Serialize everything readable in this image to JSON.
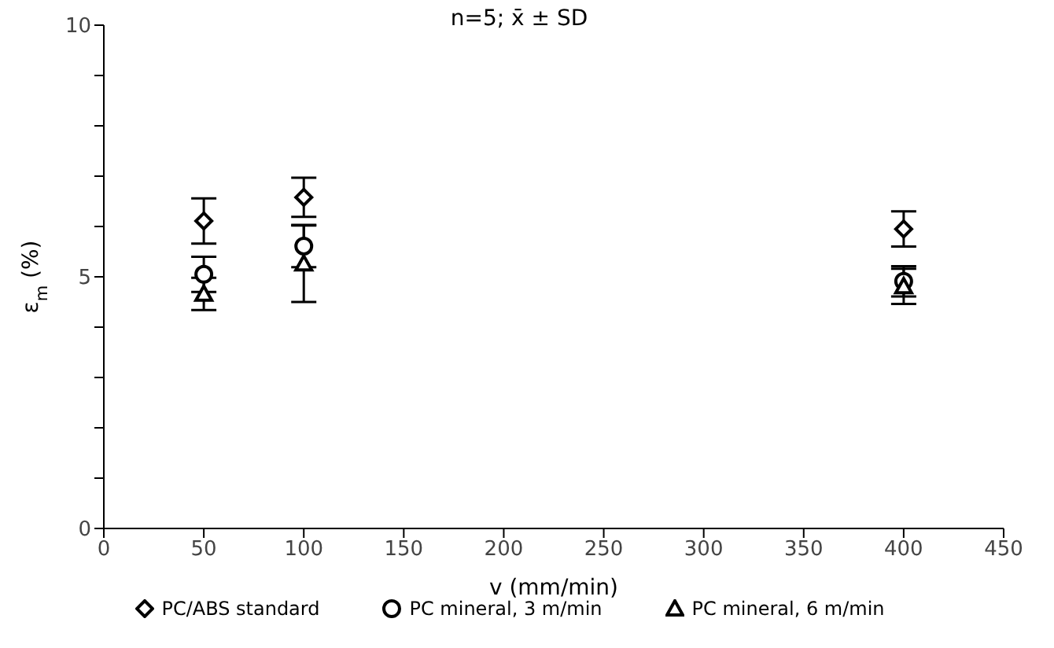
{
  "chart_data": {
    "type": "scatter",
    "title": "n=5; x̄ ± SD",
    "xlabel": "v (mm/min)",
    "ylabel": "ε$_{m}$ (%)",
    "x": [
      50,
      100,
      400
    ],
    "series": [
      {
        "name": "PC/ABS standard",
        "color": "#000000",
        "marker": "diamond",
        "values": [
          6.11,
          6.58,
          5.95
        ],
        "errors": [
          0.45,
          0.39,
          0.35
        ]
      },
      {
        "name": "PC mineral, 3 m/min",
        "color": "#000000",
        "marker": "circle",
        "values": [
          5.05,
          5.61,
          4.91
        ],
        "errors": [
          0.35,
          0.42,
          0.3
        ]
      },
      {
        "name": "PC mineral, 6 m/min",
        "color": "#000000",
        "marker": "triangle",
        "values": [
          4.66,
          5.26,
          4.81
        ],
        "errors": [
          0.32,
          0.76,
          0.35
        ]
      }
    ],
    "xlim": [
      0,
      450
    ],
    "xticks": [
      0,
      50,
      100,
      150,
      200,
      250,
      300,
      350,
      400,
      450
    ],
    "ylim": [
      0,
      10
    ],
    "yticks": [
      0,
      {
        "value": 1,
        "label": null
      },
      {
        "value": 2,
        "label": null
      },
      {
        "value": 3,
        "label": null
      },
      {
        "value": 4,
        "label": null
      },
      5,
      {
        "value": 6,
        "label": null
      },
      {
        "value": 7,
        "label": null
      },
      {
        "value": 8,
        "label": null
      },
      {
        "value": 9,
        "label": null
      },
      10
    ],
    "grid": false,
    "legend": "bottom"
  }
}
